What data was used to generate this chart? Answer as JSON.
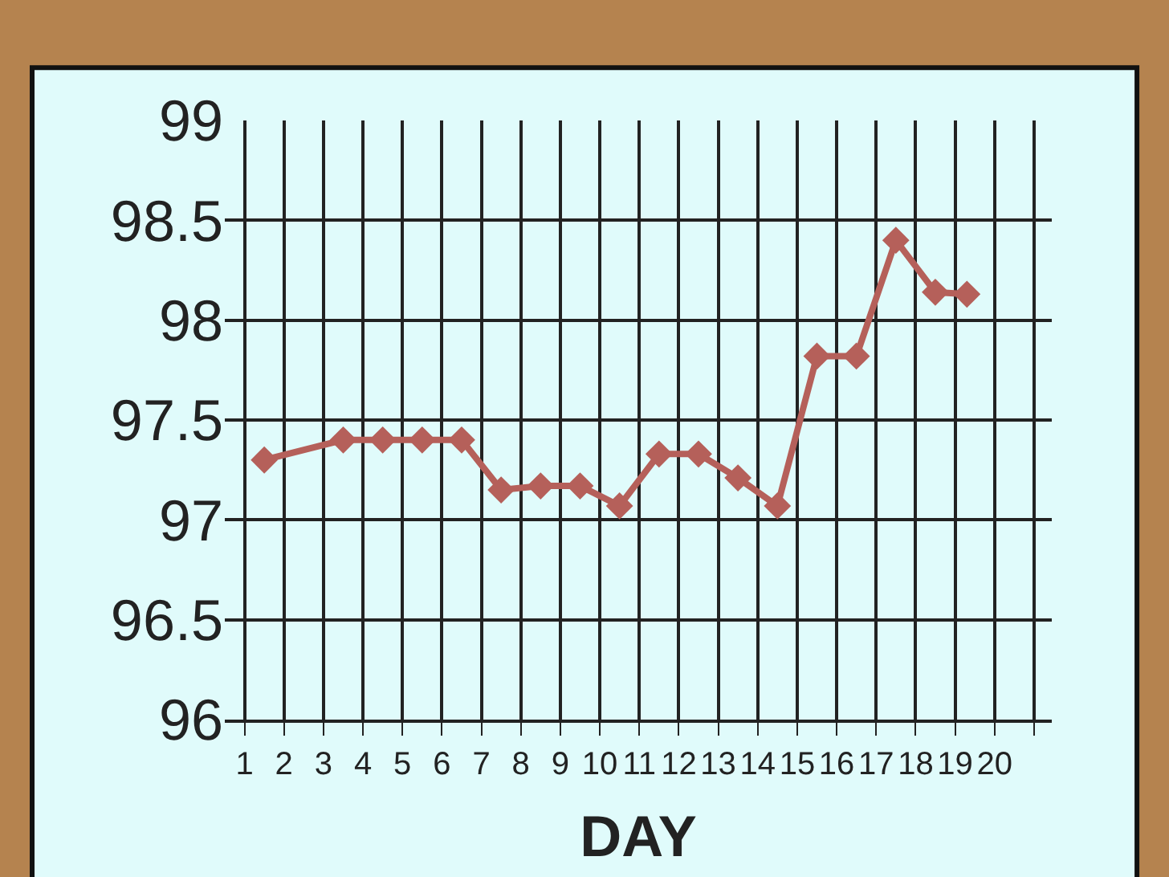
{
  "chart_data": {
    "type": "line",
    "xlabel": "DAY",
    "x": [
      1.5,
      3.5,
      4.5,
      5.5,
      6.5,
      7.5,
      8.5,
      9.5,
      10.5,
      11.5,
      12.5,
      13.5,
      14.5,
      15.5,
      16.5,
      17.5,
      18.5,
      19.3
    ],
    "series": [
      {
        "color": "#b5605a",
        "values": [
          97.3,
          97.4,
          97.4,
          97.4,
          97.4,
          97.15,
          97.17,
          97.17,
          97.07,
          97.33,
          97.33,
          97.21,
          97.07,
          97.82,
          97.82,
          98.4,
          98.14,
          98.13
        ]
      }
    ],
    "xlim": [
      0.5,
      21.45
    ],
    "xticks": [
      1,
      2,
      3,
      4,
      5,
      6,
      7,
      8,
      9,
      10,
      11,
      12,
      13,
      14,
      15,
      16,
      17,
      18,
      19,
      20,
      {
        "value": 21,
        "label": null
      }
    ],
    "ylim": [
      96,
      99
    ],
    "yticks": [
      96,
      96.5,
      97,
      97.5,
      98,
      98.5,
      99
    ],
    "grid": true,
    "marker": "diamond",
    "line_style": "solid"
  }
}
